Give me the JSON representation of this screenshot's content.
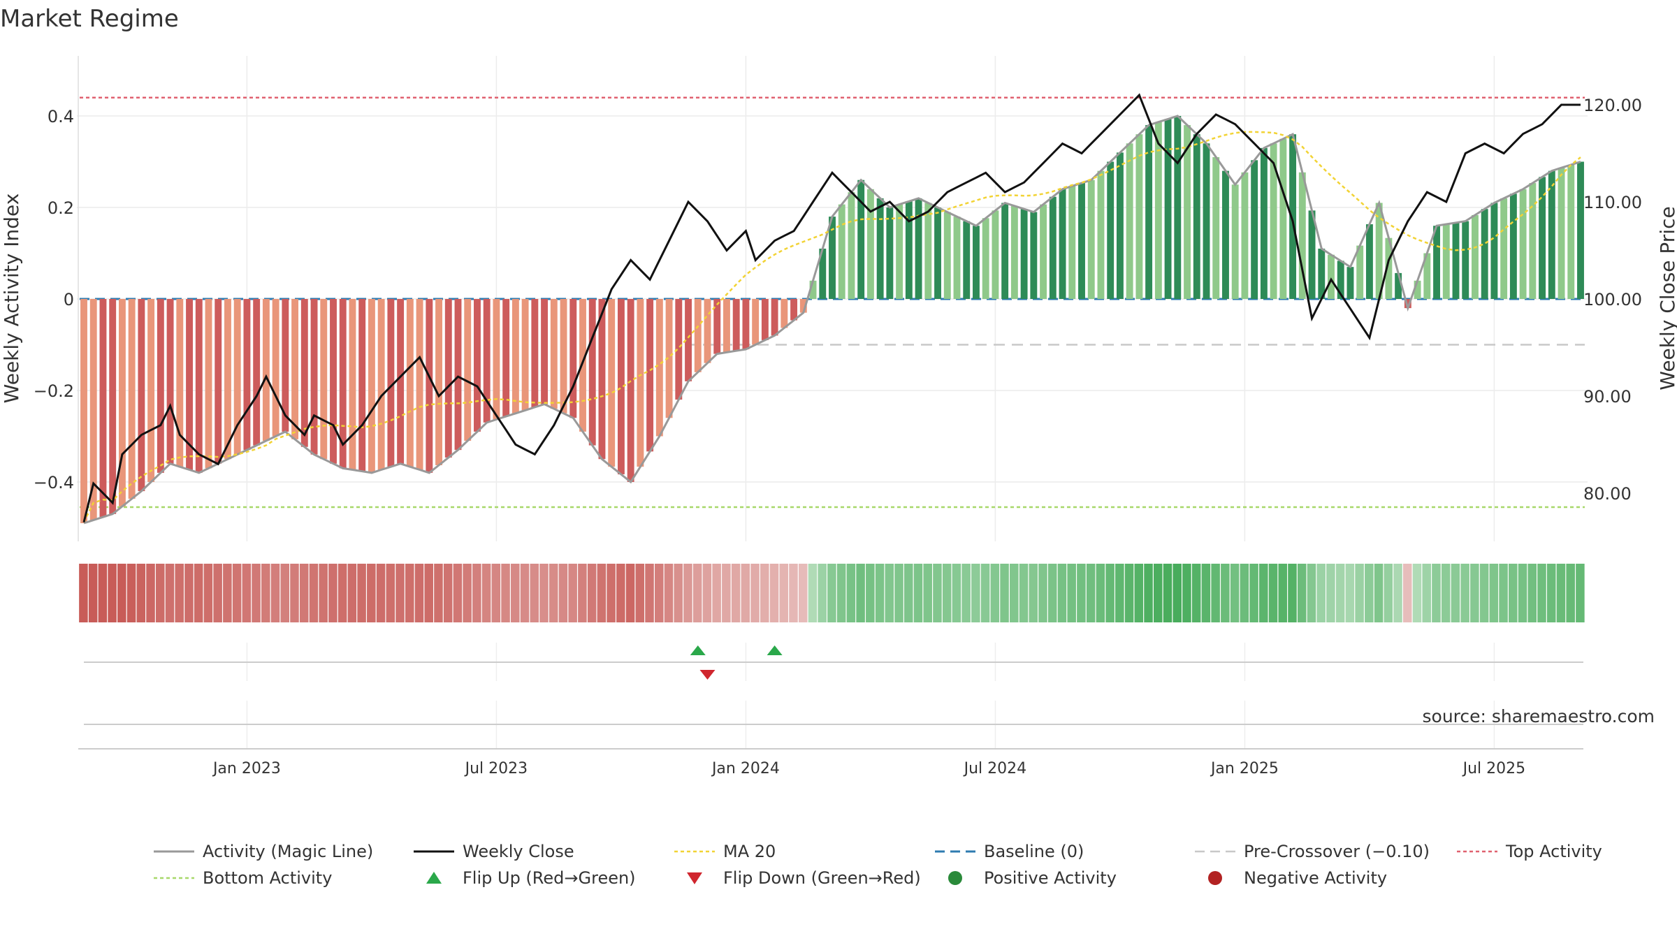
{
  "title": "Market Regime",
  "source": "source: sharemaestro.com",
  "axes": {
    "left_label": "Weekly Activity Index",
    "right_label": "Weekly Close Price",
    "left_ticks": [
      {
        "v": 0.4,
        "label": "0.4"
      },
      {
        "v": 0.2,
        "label": "0.2"
      },
      {
        "v": 0.0,
        "label": "0"
      },
      {
        "v": -0.2,
        "label": "−0.2"
      },
      {
        "v": -0.4,
        "label": "−0.4"
      }
    ],
    "right_ticks": [
      {
        "v": 120,
        "label": "120.00"
      },
      {
        "v": 110,
        "label": "110.00"
      },
      {
        "v": 100,
        "label": "100.00"
      },
      {
        "v": 90,
        "label": "90.00"
      },
      {
        "v": 80,
        "label": "80.00"
      }
    ],
    "x_ticks": [
      {
        "week": 17,
        "label": "Jan 2023"
      },
      {
        "week": 43,
        "label": "Jul 2023"
      },
      {
        "week": 69,
        "label": "Jan 2024"
      },
      {
        "week": 95,
        "label": "Jul 2024"
      },
      {
        "week": 121,
        "label": "Jan 2025"
      },
      {
        "week": 147,
        "label": "Jul 2025"
      }
    ]
  },
  "legend": [
    {
      "kind": "line",
      "color": "#999999",
      "dash": "",
      "width": 3,
      "label": "Activity (Magic Line)"
    },
    {
      "kind": "line",
      "color": "#111111",
      "dash": "",
      "width": 3,
      "label": "Weekly Close"
    },
    {
      "kind": "line",
      "color": "#f2d335",
      "dash": "5,4",
      "width": 2.5,
      "label": "MA 20"
    },
    {
      "kind": "line",
      "color": "#2e7bb0",
      "dash": "14,8",
      "width": 3,
      "label": "Baseline (0)"
    },
    {
      "kind": "line",
      "color": "#c8c8c8",
      "dash": "14,8",
      "width": 2.5,
      "label": "Pre-Crossover (−0.10)"
    },
    {
      "kind": "line",
      "color": "#e06270",
      "dash": "5,4",
      "width": 2.5,
      "label": "Top Activity"
    },
    {
      "kind": "line",
      "color": "#a8d86a",
      "dash": "5,4",
      "width": 2.5,
      "label": "Bottom Activity"
    },
    {
      "kind": "tri-up",
      "color": "#2aa84a",
      "label": "Flip Up (Red→Green)"
    },
    {
      "kind": "tri-down",
      "color": "#d0262e",
      "label": "Flip Down (Green→Red)"
    },
    {
      "kind": "dot",
      "color": "#2a8a3a",
      "label": "Positive Activity"
    },
    {
      "kind": "dot",
      "color": "#b22222",
      "label": "Negative Activity"
    }
  ],
  "colors": {
    "neg_dark": "#cd5c5c",
    "neg_light": "#e9967a",
    "pos_dark": "#2e8b57",
    "pos_light": "#8fc98a",
    "magic": "#999999",
    "close": "#111111",
    "ma20": "#f2d335",
    "baseline": "#2e7bb0",
    "precross": "#c8c8c8",
    "top": "#e06270",
    "bottom": "#a8d86a",
    "flip_up": "#2aa84a",
    "flip_down": "#d0262e"
  },
  "chart_data": {
    "type": "bar",
    "x_unit": "week index (0 = first week shown, mid-Sep 2022)",
    "levels": {
      "baseline": 0,
      "pre_crossover": -0.1,
      "top_activity": 0.44,
      "bottom_activity": -0.455
    },
    "left_ylim": [
      -0.53,
      0.53
    ],
    "right_ylim": [
      74.5,
      121.8
    ],
    "anchors": {
      "activity_weeks": [
        0,
        3,
        6,
        9,
        12,
        15,
        18,
        21,
        24,
        27,
        30,
        33,
        36,
        39,
        42,
        45,
        48,
        51,
        54,
        57,
        60,
        63,
        66,
        69,
        72,
        75,
        78,
        81,
        84,
        87,
        90,
        93,
        96,
        99,
        102,
        105,
        108,
        111,
        114,
        117,
        120,
        123,
        126,
        129,
        132,
        135,
        138,
        141,
        144,
        147,
        150,
        153,
        156
      ],
      "activity_values": [
        -0.49,
        -0.47,
        -0.42,
        -0.36,
        -0.38,
        -0.35,
        -0.32,
        -0.29,
        -0.34,
        -0.37,
        -0.38,
        -0.36,
        -0.38,
        -0.33,
        -0.27,
        -0.25,
        -0.23,
        -0.26,
        -0.35,
        -0.4,
        -0.3,
        -0.18,
        -0.12,
        -0.11,
        -0.08,
        -0.03,
        0.18,
        0.26,
        0.2,
        0.22,
        0.19,
        0.16,
        0.21,
        0.19,
        0.24,
        0.26,
        0.32,
        0.38,
        0.4,
        0.34,
        0.25,
        0.33,
        0.36,
        0.11,
        0.07,
        0.21,
        -0.02,
        0.16,
        0.17,
        0.21,
        0.24,
        0.28,
        0.3
      ],
      "close_weeks": [
        0,
        1,
        3,
        4,
        6,
        8,
        9,
        10,
        12,
        14,
        16,
        18,
        19,
        21,
        23,
        24,
        26,
        27,
        29,
        31,
        33,
        35,
        37,
        39,
        41,
        43,
        45,
        47,
        49,
        51,
        53,
        55,
        57,
        59,
        61,
        63,
        65,
        67,
        69,
        70,
        72,
        74,
        76,
        78,
        80,
        82,
        84,
        86,
        88,
        90,
        92,
        94,
        96,
        98,
        100,
        102,
        104,
        106,
        108,
        110,
        112,
        114,
        116,
        118,
        120,
        122,
        124,
        126,
        128,
        130,
        132,
        134,
        136,
        138,
        140,
        142,
        144,
        146,
        148,
        150,
        152,
        154,
        156
      ],
      "close_values": [
        77,
        81,
        79,
        84,
        86,
        87,
        89,
        86,
        84,
        83,
        87,
        90,
        92,
        88,
        86,
        88,
        87,
        85,
        87,
        90,
        92,
        94,
        90,
        92,
        91,
        88,
        85,
        84,
        87,
        91,
        96,
        101,
        104,
        102,
        106,
        110,
        108,
        105,
        107,
        104,
        106,
        107,
        110,
        113,
        111,
        109,
        110,
        108,
        109,
        111,
        112,
        113,
        111,
        112,
        114,
        116,
        115,
        117,
        119,
        121,
        116,
        114,
        117,
        119,
        118,
        116,
        114,
        108,
        98,
        102,
        99,
        96,
        104,
        108,
        111,
        110,
        115,
        116,
        115,
        117,
        118,
        120,
        120
      ]
    },
    "ma20_rule": "20-week simple moving average of Weekly Close",
    "bar_rule": "bar height = Activity (Magic Line) value per week; light/dark shading alternates with the weekly change",
    "strip_rule": "one cell per week, red when activity < 0 and green when > 0; saturation grows with magnitude",
    "flips_up_weeks": [
      64,
      72
    ],
    "flips_down_weeks": [
      65
    ]
  }
}
